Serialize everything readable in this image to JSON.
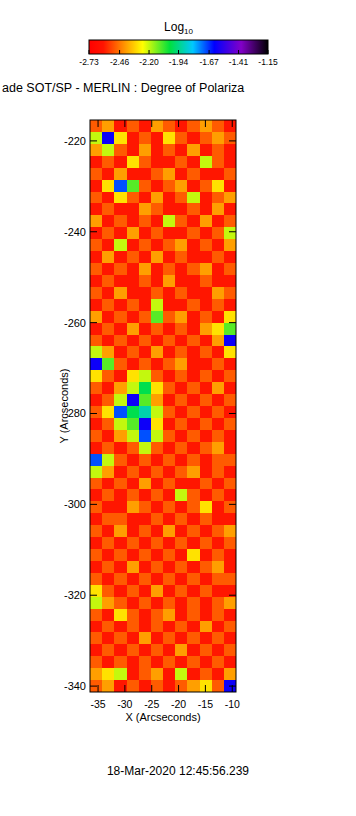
{
  "chart_data": {
    "type": "heatmap",
    "title": "ade SOT/SP - MERLIN : Degree of Polariza",
    "x_label": "X (Arcseconds)",
    "y_label": "Y (Arcseconds)",
    "annotation": "18-Mar-2020 12:45:56.239",
    "xlim": [
      -36.5,
      -9.3
    ],
    "xticks": [
      -35,
      -30,
      -25,
      -20,
      -15,
      -10
    ],
    "ylim": [
      -341.3,
      -215.4
    ],
    "yticks": [
      -340,
      -320,
      -300,
      -280,
      -260,
      -240,
      -220
    ],
    "colorbar": {
      "label": "Log10",
      "range": [
        -2.73,
        -1.15
      ],
      "ticks": [
        {
          "value": -2.73,
          "label": "-2.73"
        },
        {
          "value": -2.46,
          "label": "-2.46"
        },
        {
          "value": -2.2,
          "label": "-2.20"
        },
        {
          "value": -1.94,
          "label": "-1.94"
        },
        {
          "value": -1.67,
          "label": "-1.67"
        },
        {
          "value": -1.41,
          "label": "-1.41"
        },
        {
          "value": -1.15,
          "label": "-1.15"
        }
      ]
    },
    "cells": [
      [
        -2.5,
        -2.4,
        -2.6,
        -2.5,
        -2.6,
        -2.4,
        -2.5,
        -2.6,
        -2.5,
        -2.4,
        -2.5,
        -2.6
      ],
      [
        -2.2,
        -1.6,
        -2.3,
        -2.6,
        -2.5,
        -2.6,
        -2.3,
        -2.5,
        -2.6,
        -2.5,
        -2.4,
        -2.5
      ],
      [
        -2.4,
        -2.2,
        -2.5,
        -2.6,
        -2.4,
        -2.6,
        -2.5,
        -2.6,
        -2.4,
        -2.6,
        -2.5,
        -2.6
      ],
      [
        -2.6,
        -2.5,
        -2.6,
        -2.3,
        -2.5,
        -2.6,
        -2.6,
        -2.5,
        -2.6,
        -2.2,
        -2.5,
        -2.6
      ],
      [
        -2.5,
        -2.6,
        -2.4,
        -2.6,
        -2.6,
        -2.5,
        -2.4,
        -2.6,
        -2.5,
        -2.6,
        -2.6,
        -2.5
      ],
      [
        -2.6,
        -2.3,
        -1.7,
        -2.1,
        -2.5,
        -2.6,
        -2.5,
        -2.4,
        -2.6,
        -2.5,
        -2.3,
        -2.6
      ],
      [
        -2.5,
        -2.6,
        -2.3,
        -2.5,
        -2.6,
        -2.4,
        -2.6,
        -2.5,
        -2.2,
        -2.6,
        -2.5,
        -2.4
      ],
      [
        -2.6,
        -2.5,
        -2.6,
        -2.6,
        -2.4,
        -2.5,
        -2.6,
        -2.6,
        -2.5,
        -2.6,
        -2.4,
        -2.6
      ],
      [
        -2.4,
        -2.6,
        -2.5,
        -2.6,
        -2.5,
        -2.6,
        -2.2,
        -2.5,
        -2.6,
        -2.4,
        -2.6,
        -2.5
      ],
      [
        -2.6,
        -2.5,
        -2.6,
        -2.4,
        -2.6,
        -2.5,
        -2.6,
        -2.6,
        -2.5,
        -2.6,
        -2.5,
        -2.2
      ],
      [
        -2.5,
        -2.6,
        -2.2,
        -2.6,
        -2.5,
        -2.6,
        -2.5,
        -2.4,
        -2.6,
        -2.5,
        -2.6,
        -2.4
      ],
      [
        -2.6,
        -2.4,
        -2.6,
        -2.5,
        -2.6,
        -2.4,
        -2.6,
        -2.5,
        -2.6,
        -2.6,
        -2.5,
        -2.6
      ],
      [
        -2.5,
        -2.6,
        -2.5,
        -2.6,
        -2.4,
        -2.6,
        -2.5,
        -2.6,
        -2.5,
        -2.4,
        -2.6,
        -2.5
      ],
      [
        -2.6,
        -2.5,
        -2.6,
        -2.6,
        -2.5,
        -2.6,
        -2.4,
        -2.6,
        -2.6,
        -2.5,
        -2.6,
        -2.6
      ],
      [
        -2.5,
        -2.6,
        -2.4,
        -2.6,
        -2.6,
        -2.5,
        -2.6,
        -2.5,
        -2.6,
        -2.6,
        -2.4,
        -2.5
      ],
      [
        -2.6,
        -2.5,
        -2.6,
        -2.5,
        -2.6,
        -2.2,
        -2.6,
        -2.6,
        -2.5,
        -2.6,
        -2.5,
        -2.6
      ],
      [
        -2.4,
        -2.6,
        -2.5,
        -2.6,
        -2.5,
        -2.1,
        -2.5,
        -2.4,
        -2.6,
        -2.5,
        -2.6,
        -2.3
      ],
      [
        -2.6,
        -2.5,
        -2.6,
        -2.4,
        -2.6,
        -2.5,
        -2.6,
        -2.5,
        -2.6,
        -2.4,
        -2.3,
        -2.1
      ],
      [
        -2.5,
        -2.6,
        -2.5,
        -2.6,
        -2.5,
        -2.6,
        -2.5,
        -2.6,
        -2.5,
        -2.6,
        -2.4,
        -1.6
      ],
      [
        -2.2,
        -2.4,
        -2.6,
        -2.5,
        -2.6,
        -2.4,
        -2.6,
        -2.5,
        -2.6,
        -2.5,
        -2.6,
        -2.3
      ],
      [
        -1.6,
        -2.1,
        -2.5,
        -2.6,
        -2.5,
        -2.6,
        -2.5,
        -2.4,
        -2.6,
        -2.6,
        -2.5,
        -2.6
      ],
      [
        -2.3,
        -2.5,
        -2.6,
        -2.3,
        -2.2,
        -2.5,
        -2.6,
        -2.5,
        -2.6,
        -2.5,
        -2.6,
        -2.5
      ],
      [
        -2.5,
        -2.6,
        -2.4,
        -2.2,
        -2.0,
        -2.3,
        -2.5,
        -2.6,
        -2.5,
        -2.6,
        -2.4,
        -2.6
      ],
      [
        -2.6,
        -2.5,
        -2.2,
        -1.6,
        -2.1,
        -2.4,
        -2.6,
        -2.5,
        -2.6,
        -2.5,
        -2.6,
        -2.5
      ],
      [
        -2.5,
        -2.3,
        -1.7,
        -2.0,
        -1.9,
        -2.2,
        -2.5,
        -2.6,
        -2.5,
        -2.6,
        -2.5,
        -2.6
      ],
      [
        -2.6,
        -2.5,
        -2.2,
        -2.1,
        -1.6,
        -2.3,
        -2.6,
        -2.5,
        -2.6,
        -2.5,
        -2.6,
        -2.5
      ],
      [
        -2.5,
        -2.6,
        -2.4,
        -2.2,
        -1.7,
        -2.2,
        -2.5,
        -2.6,
        -2.5,
        -2.6,
        -2.5,
        -2.6
      ],
      [
        -2.6,
        -2.5,
        -2.6,
        -2.5,
        -2.2,
        -2.5,
        -2.6,
        -2.5,
        -2.6,
        -2.5,
        -2.4,
        -2.6
      ],
      [
        -1.7,
        -2.2,
        -2.5,
        -2.6,
        -2.5,
        -2.6,
        -2.5,
        -2.6,
        -2.5,
        -2.6,
        -2.5,
        -2.5
      ],
      [
        -2.2,
        -2.4,
        -2.6,
        -2.5,
        -2.6,
        -2.5,
        -2.6,
        -2.5,
        -2.4,
        -2.6,
        -2.5,
        -2.6
      ],
      [
        -2.5,
        -2.6,
        -2.5,
        -2.6,
        -2.4,
        -2.6,
        -2.5,
        -2.6,
        -2.6,
        -2.5,
        -2.6,
        -2.5
      ],
      [
        -2.6,
        -2.5,
        -2.6,
        -2.5,
        -2.6,
        -2.5,
        -2.6,
        -2.2,
        -2.5,
        -2.6,
        -2.5,
        -2.6
      ],
      [
        -2.5,
        -2.6,
        -2.6,
        -2.4,
        -2.5,
        -2.6,
        -2.5,
        -2.6,
        -2.5,
        -2.3,
        -2.6,
        -2.5
      ],
      [
        -2.6,
        -2.5,
        -2.5,
        -2.6,
        -2.6,
        -2.5,
        -2.6,
        -2.5,
        -2.6,
        -2.5,
        -2.6,
        -2.6
      ],
      [
        -2.5,
        -2.6,
        -2.4,
        -2.6,
        -2.5,
        -2.6,
        -2.4,
        -2.6,
        -2.5,
        -2.6,
        -2.5,
        -2.4
      ],
      [
        -2.6,
        -2.5,
        -2.6,
        -2.5,
        -2.6,
        -2.5,
        -2.6,
        -2.5,
        -2.6,
        -2.5,
        -2.6,
        -2.5
      ],
      [
        -2.5,
        -2.6,
        -2.5,
        -2.6,
        -2.5,
        -2.6,
        -2.5,
        -2.6,
        -2.3,
        -2.6,
        -2.5,
        -2.6
      ],
      [
        -2.6,
        -2.5,
        -2.6,
        -2.4,
        -2.6,
        -2.5,
        -2.6,
        -2.5,
        -2.6,
        -2.5,
        -2.4,
        -2.6
      ],
      [
        -2.5,
        -2.6,
        -2.5,
        -2.6,
        -2.5,
        -2.6,
        -2.5,
        -2.6,
        -2.5,
        -2.6,
        -2.5,
        -2.5
      ],
      [
        -2.3,
        -2.5,
        -2.6,
        -2.5,
        -2.6,
        -2.4,
        -2.6,
        -2.5,
        -2.6,
        -2.5,
        -2.6,
        -2.6
      ],
      [
        -2.2,
        -2.4,
        -2.5,
        -2.6,
        -2.5,
        -2.6,
        -2.5,
        -2.6,
        -2.5,
        -2.6,
        -2.5,
        -2.4
      ],
      [
        -2.5,
        -2.6,
        -2.3,
        -2.5,
        -2.6,
        -2.5,
        -2.4,
        -2.6,
        -2.5,
        -2.6,
        -2.5,
        -2.6
      ],
      [
        -2.6,
        -2.5,
        -2.6,
        -2.5,
        -2.6,
        -2.5,
        -2.6,
        -2.5,
        -2.6,
        -2.4,
        -2.6,
        -2.5
      ],
      [
        -2.5,
        -2.6,
        -2.5,
        -2.6,
        -2.4,
        -2.6,
        -2.5,
        -2.6,
        -2.5,
        -2.6,
        -2.5,
        -2.6
      ],
      [
        -2.6,
        -2.5,
        -2.6,
        -2.5,
        -2.6,
        -2.5,
        -2.6,
        -2.4,
        -2.6,
        -2.5,
        -2.6,
        -2.5
      ],
      [
        -2.5,
        -2.6,
        -2.5,
        -2.6,
        -2.5,
        -2.6,
        -2.5,
        -2.6,
        -2.5,
        -2.6,
        -2.5,
        -2.6
      ],
      [
        -2.4,
        -2.3,
        -2.2,
        -2.6,
        -2.5,
        -2.4,
        -2.6,
        -2.2,
        -2.6,
        -2.5,
        -2.6,
        -2.4
      ],
      [
        -2.5,
        -2.4,
        -2.6,
        -2.5,
        -2.6,
        -2.5,
        -2.6,
        -2.5,
        -2.4,
        -2.3,
        -2.5,
        -1.6
      ]
    ]
  }
}
